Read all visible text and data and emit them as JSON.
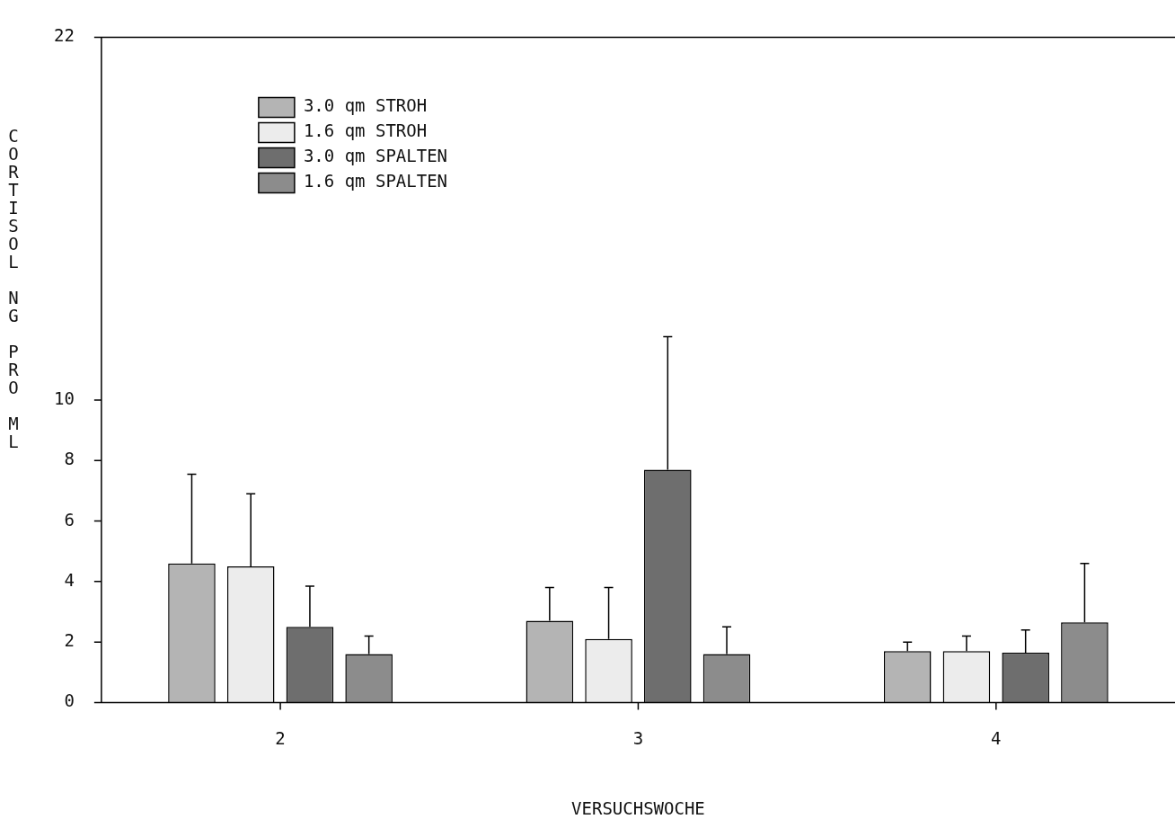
{
  "chart_data": {
    "type": "bar",
    "xlabel": "VERSUCHSWOCHE",
    "ylabel": "CORTISOL NG PRO ML",
    "categories": [
      "2",
      "3",
      "4"
    ],
    "series": [
      {
        "name": "3.0 qm STROH",
        "color": "#b4b4b4",
        "values": [
          4.6,
          2.7,
          1.7
        ],
        "errors": [
          [
            4.6,
            7.55
          ],
          [
            2.7,
            3.8
          ],
          [
            1.7,
            2.0
          ]
        ]
      },
      {
        "name": "1.6 qm STROH",
        "color": "#ececec",
        "values": [
          4.5,
          2.1,
          1.7
        ],
        "errors": [
          [
            4.5,
            6.9
          ],
          [
            2.1,
            3.8
          ],
          [
            1.7,
            2.2
          ]
        ]
      },
      {
        "name": "3.0 qm SPALTEN",
        "color": "#6e6e6e",
        "values": [
          2.5,
          7.7,
          1.65
        ],
        "errors": [
          [
            2.5,
            3.85
          ],
          [
            7.7,
            12.1
          ],
          [
            1.65,
            2.4
          ]
        ]
      },
      {
        "name": "1.6 qm SPALTEN",
        "color": "#8c8c8c",
        "values": [
          1.6,
          1.6,
          2.65
        ],
        "errors": [
          [
            1.6,
            2.2
          ],
          [
            1.6,
            2.5
          ],
          [
            2.65,
            4.6
          ]
        ]
      }
    ],
    "ylim": [
      0,
      22
    ],
    "yticks": [
      0,
      2,
      4,
      6,
      8,
      10,
      22
    ],
    "grid": false,
    "legend": "top left"
  }
}
